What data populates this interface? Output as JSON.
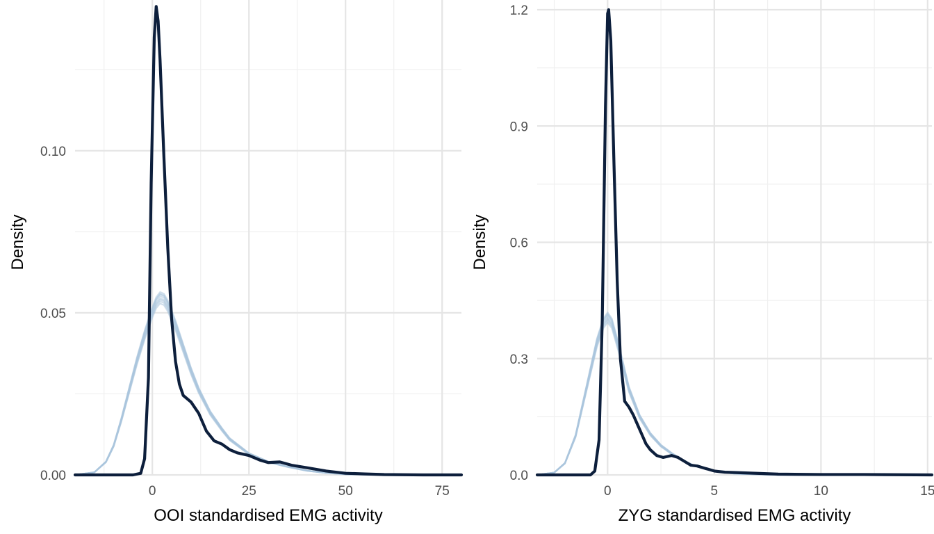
{
  "chart_data": [
    {
      "type": "line",
      "xlabel": "OOI standardised EMG activity",
      "ylabel": "Density",
      "xlim": [
        -20,
        80
      ],
      "ylim": [
        0,
        0.1435
      ],
      "xticks": [
        0,
        25,
        50,
        75
      ],
      "xtick_labels": [
        "0",
        "25",
        "50",
        "75"
      ],
      "yticks": [
        0.0,
        0.05,
        0.1
      ],
      "ytick_labels": [
        "0.00",
        "0.05",
        "0.10"
      ],
      "grid": true,
      "legend": "none",
      "series": [
        {
          "role": "simulated",
          "color": "#a9c4dc",
          "replicates": 8,
          "x": [
            -20,
            -15,
            -12,
            -10,
            -8,
            -6,
            -4,
            -2,
            0,
            1,
            2,
            3,
            4,
            5,
            6,
            8,
            10,
            12,
            15,
            18,
            20,
            25,
            30,
            35,
            40,
            45,
            50,
            60,
            70,
            80
          ],
          "values": [
            0,
            0.0008,
            0.004,
            0.009,
            0.017,
            0.026,
            0.035,
            0.043,
            0.05,
            0.053,
            0.0545,
            0.054,
            0.052,
            0.049,
            0.046,
            0.039,
            0.032,
            0.026,
            0.019,
            0.014,
            0.011,
            0.0065,
            0.004,
            0.0025,
            0.0013,
            0.0006,
            0.0002,
            0,
            0,
            0
          ]
        },
        {
          "role": "observed",
          "color": "#0d1f3c",
          "x": [
            -20,
            -5,
            -3,
            -2,
            -1,
            -0.3,
            0.5,
            1,
            1.5,
            2,
            3,
            4,
            5,
            6,
            7,
            8,
            10,
            12,
            14,
            16,
            18,
            20,
            22,
            25,
            28,
            30,
            33,
            36,
            40,
            45,
            50,
            55,
            60,
            70,
            80
          ],
          "values": [
            0,
            0,
            0.0005,
            0.005,
            0.03,
            0.09,
            0.135,
            0.1445,
            0.14,
            0.128,
            0.098,
            0.07,
            0.048,
            0.035,
            0.028,
            0.0245,
            0.0225,
            0.019,
            0.0135,
            0.0105,
            0.0095,
            0.0078,
            0.0068,
            0.006,
            0.0045,
            0.0038,
            0.004,
            0.003,
            0.0022,
            0.0012,
            0.0005,
            0.0003,
            0.0001,
            0,
            0
          ]
        }
      ]
    },
    {
      "type": "line",
      "xlabel": "ZYG standardised EMG activity",
      "ylabel": "Density",
      "xlim": [
        -3.3,
        15.2
      ],
      "ylim": [
        0,
        1.2
      ],
      "xticks": [
        0,
        5,
        10,
        15
      ],
      "xtick_labels": [
        "0",
        "5",
        "10",
        "15"
      ],
      "yticks": [
        0.0,
        0.3,
        0.6,
        0.9,
        1.2
      ],
      "ytick_labels": [
        "0.0",
        "0.3",
        "0.6",
        "0.9",
        "1.2"
      ],
      "grid": true,
      "legend": "none",
      "series": [
        {
          "role": "simulated",
          "color": "#a9c4dc",
          "replicates": 8,
          "x": [
            -3.3,
            -2.5,
            -2,
            -1.5,
            -1,
            -0.5,
            -0.2,
            0,
            0.2,
            0.5,
            1,
            1.5,
            2,
            2.5,
            3,
            3.5,
            4,
            5,
            6,
            8,
            10,
            15.2
          ],
          "values": [
            0,
            0.006,
            0.03,
            0.1,
            0.22,
            0.34,
            0.39,
            0.405,
            0.39,
            0.33,
            0.22,
            0.15,
            0.105,
            0.075,
            0.055,
            0.038,
            0.025,
            0.009,
            0.003,
            0,
            0,
            0
          ]
        },
        {
          "role": "observed",
          "color": "#0d1f3c",
          "x": [
            -3.3,
            -0.8,
            -0.6,
            -0.4,
            -0.25,
            -0.1,
            0,
            0.05,
            0.15,
            0.3,
            0.45,
            0.6,
            0.8,
            1,
            1.2,
            1.4,
            1.6,
            1.8,
            2,
            2.3,
            2.6,
            3,
            3.3,
            3.6,
            3.9,
            4.2,
            4.5,
            5,
            5.5,
            6,
            7,
            8,
            10,
            12,
            15.2
          ],
          "values": [
            0,
            0,
            0.01,
            0.09,
            0.4,
            0.95,
            1.19,
            1.2,
            1.12,
            0.8,
            0.5,
            0.3,
            0.19,
            0.175,
            0.155,
            0.13,
            0.105,
            0.08,
            0.065,
            0.05,
            0.045,
            0.05,
            0.045,
            0.035,
            0.025,
            0.023,
            0.018,
            0.01,
            0.007,
            0.006,
            0.004,
            0.002,
            0.001,
            0.001,
            0
          ]
        }
      ]
    }
  ]
}
